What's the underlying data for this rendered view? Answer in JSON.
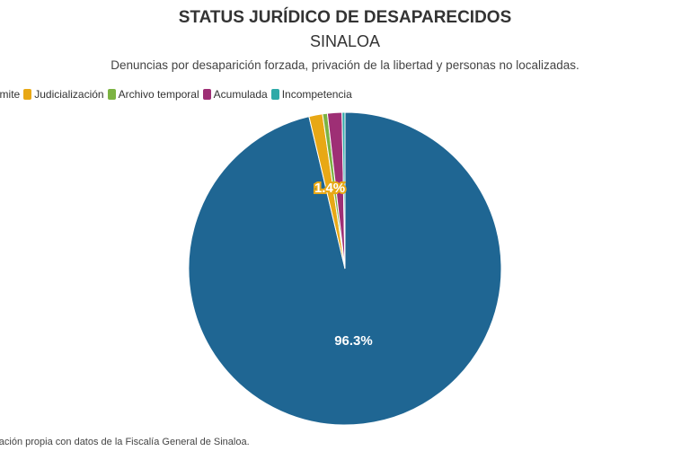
{
  "title": "STATUS JURÍDICO DE DESAPARECIDOS",
  "subtitle": "SINALOA",
  "description": "Denuncias por desaparición forzada, privación de la libertad y personas no localizadas.",
  "source": "Elaboración propia con datos de la Fiscalía General de Sinaloa.",
  "chart_data": {
    "type": "pie",
    "legend_position": "top",
    "slices": [
      {
        "name": "Trámite",
        "value": 96.3,
        "color": "#1f6693",
        "label": "96.3%"
      },
      {
        "name": "Judicialización",
        "value": 1.4,
        "color": "#e8a815",
        "label": "1.4%"
      },
      {
        "name": "Archivo temporal",
        "value": 0.5,
        "color": "#7cb342",
        "label": ""
      },
      {
        "name": "Acumulada",
        "value": 1.5,
        "color": "#9e2f75",
        "label": ""
      },
      {
        "name": "Incompetencia",
        "value": 0.3,
        "color": "#2eaaa8",
        "label": ""
      }
    ]
  }
}
